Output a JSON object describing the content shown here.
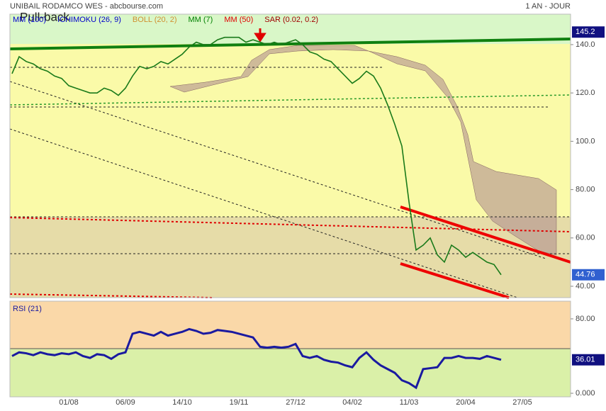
{
  "header": {
    "title": "UNIBAIL RODAMCO WES - abcbourse.com",
    "period": "1 AN - JOUR"
  },
  "chart_data": [
    {
      "type": "line",
      "indicators": [
        {
          "name": "MM (100)",
          "color": "#0000cc"
        },
        {
          "name": "ICHIMOKU (26, 9)",
          "color": "#0000cc"
        },
        {
          "name": "BOLL (20, 2)",
          "color": "#d09030"
        },
        {
          "name": "MM (7)",
          "color": "#008000"
        },
        {
          "name": "MM (50)",
          "color": "#e00000"
        },
        {
          "name": "SAR (0.02, 0.2)",
          "color": "#a00000"
        }
      ],
      "annotation": "Pull-back",
      "level_labels": [
        145.2
      ],
      "categories": [
        null,
        null,
        null,
        null,
        null,
        null,
        null,
        null,
        "01/08",
        null,
        null,
        null,
        null,
        null,
        null,
        null,
        "06/09",
        null,
        null,
        null,
        null,
        null,
        null,
        null,
        "14/10",
        null,
        null,
        null,
        null,
        null,
        null,
        null,
        "19/11",
        null,
        null,
        null,
        null,
        null,
        null,
        null,
        "27/12",
        null,
        null,
        null,
        null,
        null,
        null,
        null,
        "04/02",
        null,
        null,
        null,
        null,
        null,
        null,
        null,
        "11/03",
        null,
        null,
        null,
        null,
        null,
        null,
        null,
        "20/04",
        null,
        null,
        null,
        null,
        null,
        null,
        null,
        "27/05"
      ],
      "series": [
        {
          "name": "UNIBAIL RODAMCO WES",
          "color": "#1a7a1a",
          "values": [
            128,
            135,
            133,
            132,
            130,
            129,
            127,
            126,
            123,
            122,
            121,
            120,
            120,
            122,
            121,
            119,
            122,
            127,
            131,
            130,
            131,
            133,
            132,
            134,
            136,
            139,
            141,
            140,
            140,
            142,
            143,
            143,
            143,
            141,
            142,
            141,
            140,
            141,
            140,
            141,
            142,
            140,
            137,
            136,
            134,
            133,
            130,
            127,
            124,
            126,
            129,
            127,
            122,
            115,
            107,
            98,
            75,
            55,
            57,
            60,
            53,
            50,
            57,
            55,
            52,
            54,
            52,
            50,
            49,
            44.76,
            null,
            null,
            null
          ]
        }
      ],
      "ylim": [
        35.3,
        152.6
      ],
      "yticks": [
        {
          "value": 40,
          "label": "40.00"
        },
        {
          "value": 60,
          "label": "60.00"
        },
        {
          "value": 80,
          "label": "80.00"
        },
        {
          "value": 100,
          "label": "100.0"
        },
        {
          "value": 120,
          "label": "120.0"
        },
        {
          "value": 140,
          "label": "140.0"
        }
      ]
    },
    {
      "type": "line",
      "title": "RSI (21)",
      "series": [
        {
          "name": "RSI (21)",
          "color": "#1a1aa0",
          "values": [
            40,
            44,
            43,
            41,
            44,
            42,
            41,
            43,
            42,
            44,
            40,
            38,
            42,
            41,
            37,
            42,
            44,
            64,
            66,
            64,
            62,
            66,
            62,
            64,
            66,
            69,
            67,
            64,
            65,
            68,
            67,
            66,
            64,
            62,
            60,
            50,
            49,
            50,
            49,
            50,
            53,
            40,
            38,
            40,
            36,
            34,
            33,
            30,
            28,
            38,
            44,
            36,
            30,
            26,
            22,
            14,
            11,
            6,
            26,
            27,
            28,
            38,
            38,
            40,
            38,
            38,
            37,
            40,
            38,
            36.01,
            null,
            null,
            null
          ]
        }
      ],
      "ylim": [
        -3.8,
        99
      ],
      "yticks": [
        {
          "value": 0,
          "label": "0.000"
        },
        {
          "value": 80,
          "label": "80.00"
        }
      ]
    }
  ]
}
